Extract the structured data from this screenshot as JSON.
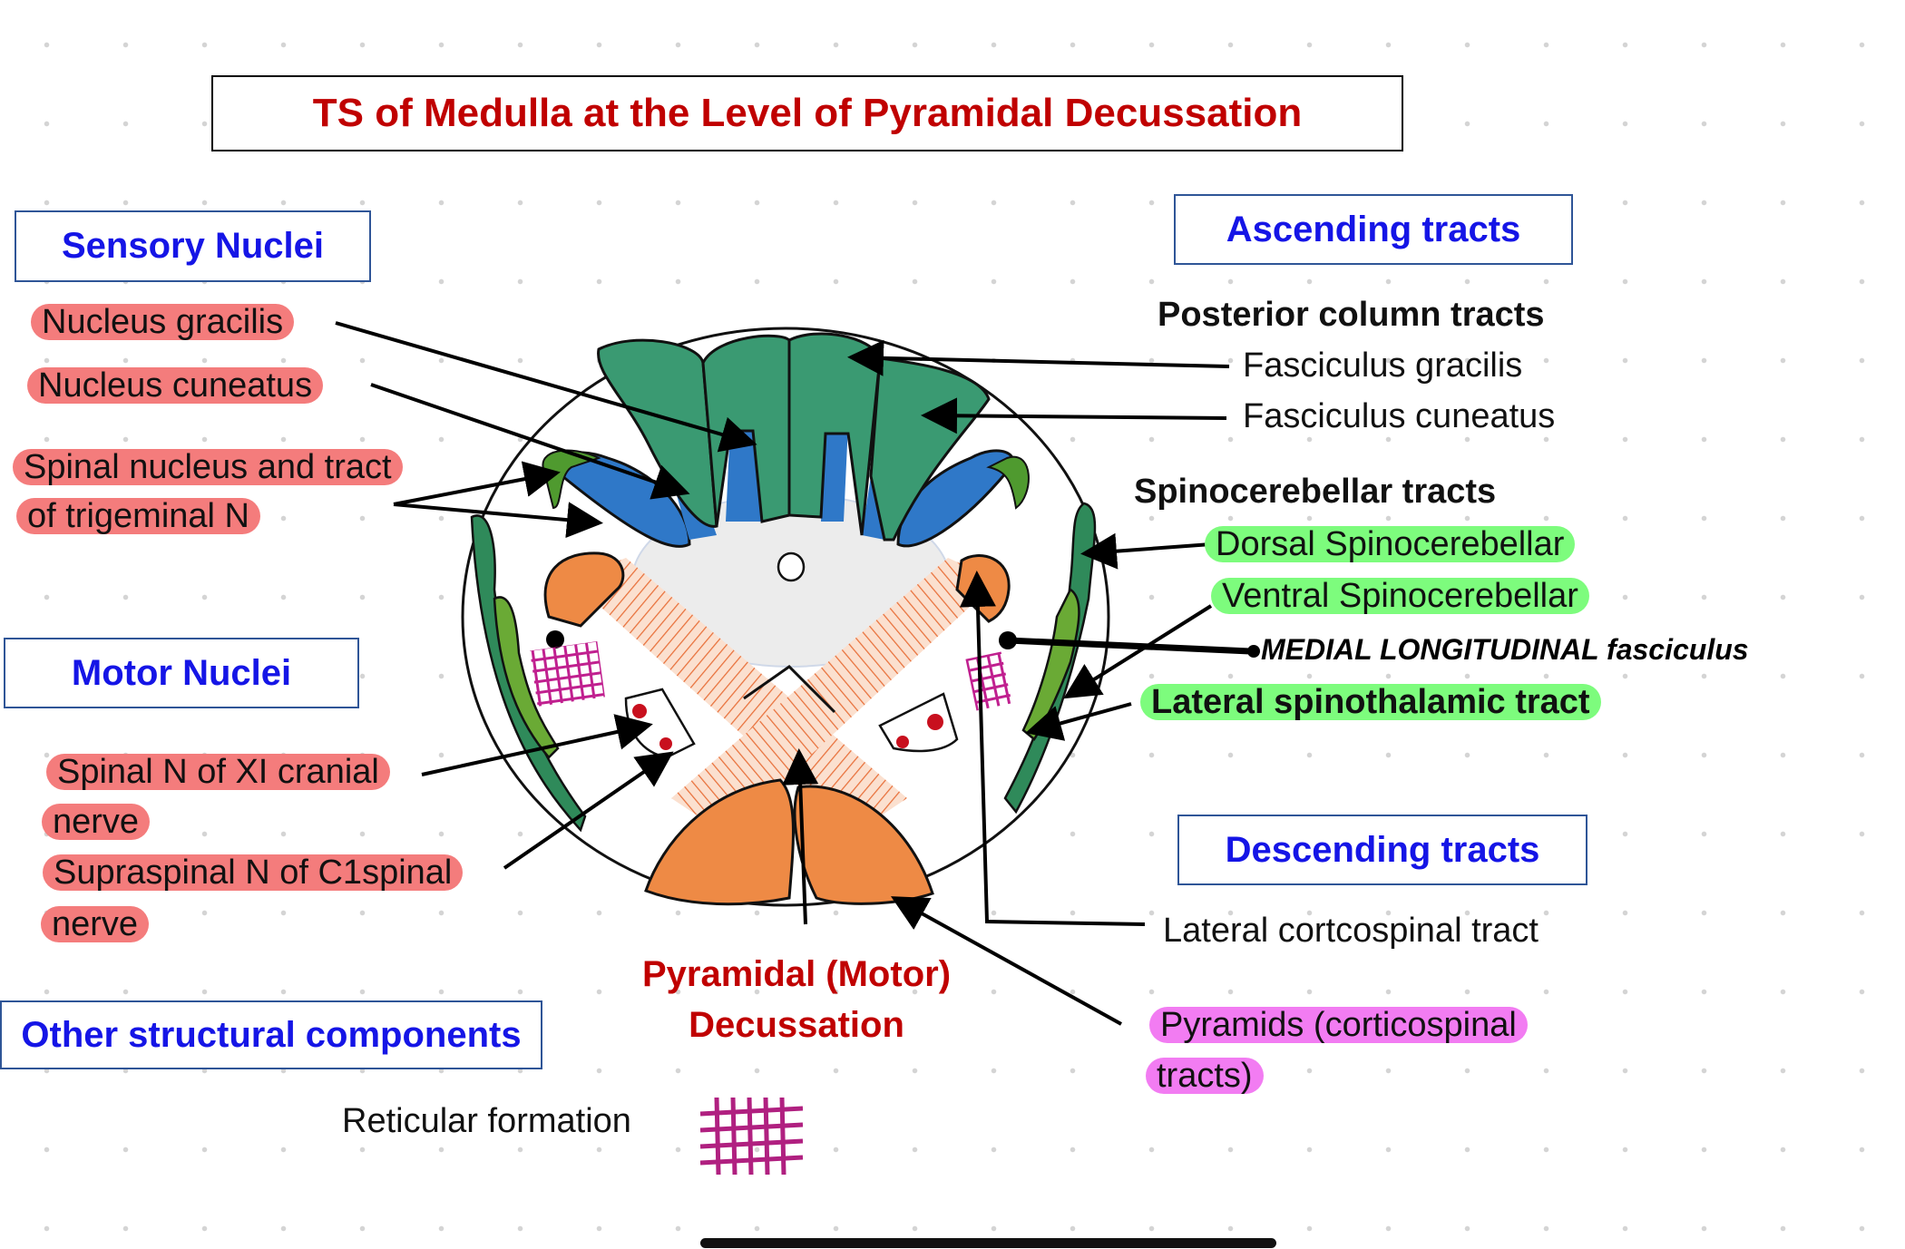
{
  "title": "TS of Medulla at the Level of Pyramidal Decussation",
  "sections": {
    "sensory": "Sensory Nuclei",
    "motor": "Motor Nuclei",
    "other": "Other structural components",
    "ascending": "Ascending tracts",
    "descending": "Descending tracts"
  },
  "sensory_labels": [
    "Nucleus gracilis",
    "Nucleus cuneatus",
    "Spinal nucleus and tract",
    "of trigeminal N"
  ],
  "motor_labels": [
    "Spinal N of XI cranial",
    "nerve",
    "Supraspinal N of C1spinal",
    "nerve"
  ],
  "ascending": {
    "posterior_heading": "Posterior column tracts",
    "fasciculus_gracilis": "Fasciculus gracilis",
    "fasciculus_cuneatus": "Fasciculus cuneatus",
    "spinocerebellar_heading": "Spinocerebellar tracts",
    "dorsal": "Dorsal Spinocerebellar",
    "ventral": "Ventral Spinocerebellar",
    "mlf": "MEDIAL LONGITUDINAL fasciculus",
    "lateral_spinothalamic": "Lateral spinothalamic tract"
  },
  "descending": {
    "lateral_corticospinal": "Lateral cortcospinal tract",
    "pyramids_1": "Pyramids (corticospinal",
    "pyramids_2": "tracts)"
  },
  "decussation": [
    "Pyramidal (Motor)",
    "Decussation"
  ],
  "other": {
    "reticular": "Reticular formation"
  },
  "colors": {
    "title": "#c00000",
    "section_heading": "#1515e6",
    "sensory_highlight": "#f47c7c",
    "ascending_highlight": "#7dfc7d",
    "pyramid_highlight": "#f27cf2",
    "posterior_columns": "#3a9a72",
    "nuclei_blue": "#2f78c8",
    "corticospinal_orange": "#ee8a45",
    "reticular_magenta": "#c0208f"
  }
}
